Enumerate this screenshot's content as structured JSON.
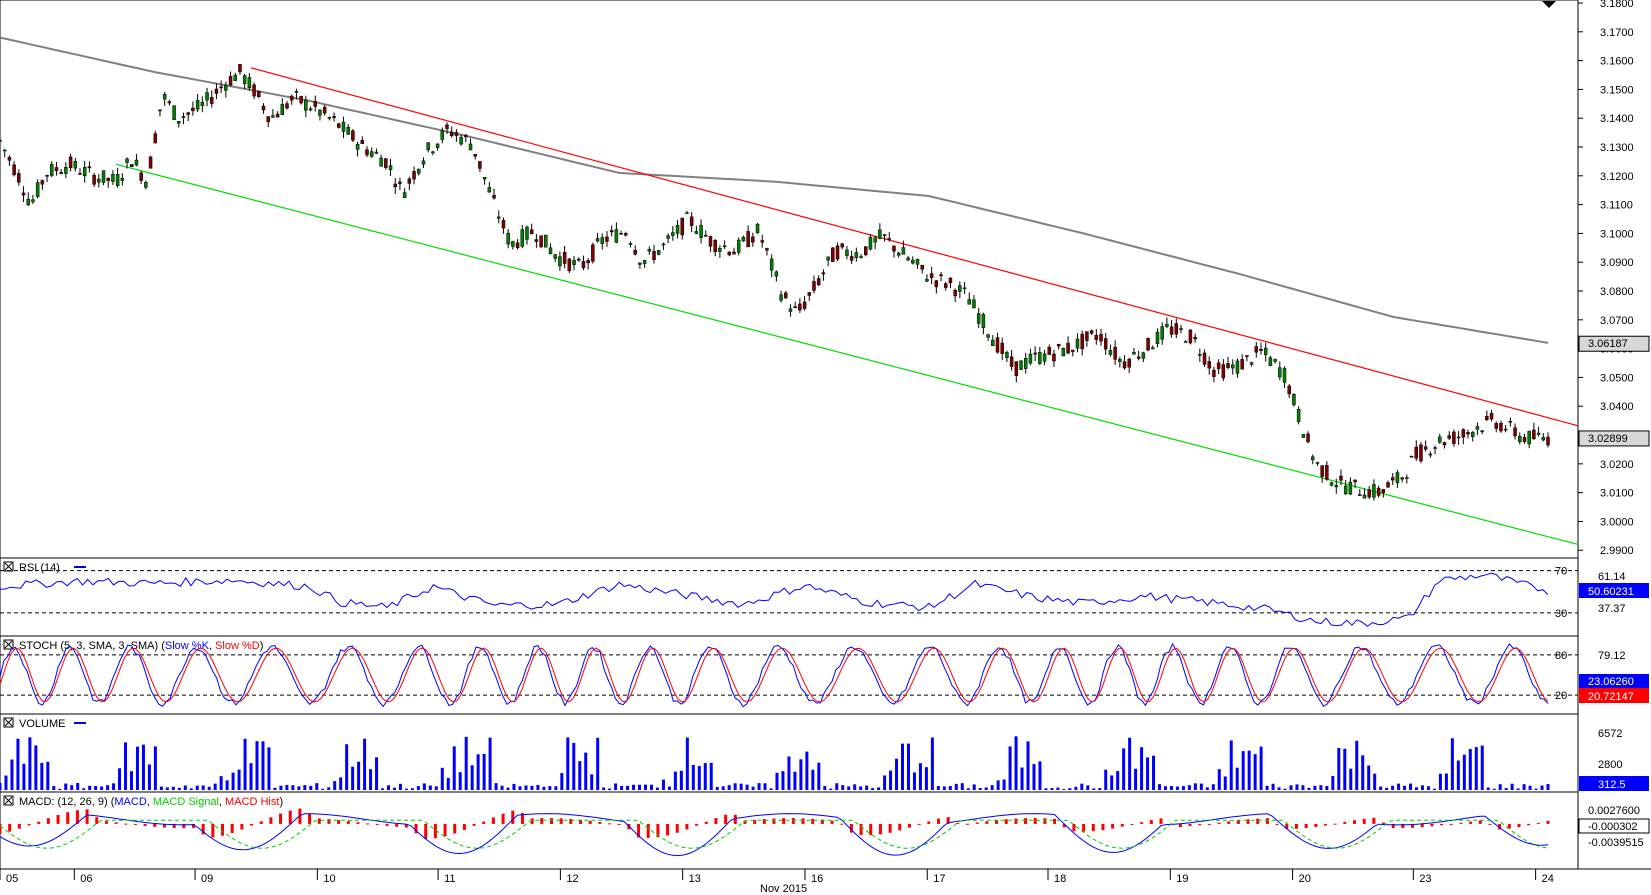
{
  "chart_data": {
    "type": "candlestick",
    "main": {
      "y_ticks": [
        "3.1800",
        "3.1700",
        "3.1600",
        "3.1500",
        "3.1400",
        "3.1300",
        "3.1200",
        "3.1100",
        "3.1000",
        "3.0900",
        "3.0800",
        "3.0700",
        "3.0600",
        "3.0500",
        "3.0400",
        "3.0300",
        "3.0200",
        "3.0100",
        "3.0000",
        "2.9900"
      ],
      "ylim": [
        2.988,
        3.18
      ],
      "sma_label": "3.06187",
      "sma_value": 3.06187,
      "last_price_label": "3.02899",
      "last_price": 3.02899,
      "sma_curve": [
        [
          0,
          3.168
        ],
        [
          0.05,
          3.162
        ],
        [
          0.1,
          3.156
        ],
        [
          0.2,
          3.146
        ],
        [
          0.3,
          3.134
        ],
        [
          0.4,
          3.121
        ],
        [
          0.5,
          3.118
        ],
        [
          0.6,
          3.113
        ],
        [
          0.7,
          3.1
        ],
        [
          0.8,
          3.086
        ],
        [
          0.9,
          3.071
        ],
        [
          1.0,
          3.062
        ]
      ],
      "upper_channel": {
        "start": [
          0.162,
          3.1575
        ],
        "end": [
          1.0,
          3.0332
        ]
      },
      "lower_channel": {
        "start": [
          0.075,
          3.124
        ],
        "end": [
          1.0,
          2.992
        ]
      },
      "price_path": [
        [
          0,
          3.132
        ],
        [
          0.012,
          3.12
        ],
        [
          0.02,
          3.11
        ],
        [
          0.03,
          3.121
        ],
        [
          0.045,
          3.124
        ],
        [
          0.06,
          3.12
        ],
        [
          0.075,
          3.118
        ],
        [
          0.085,
          3.126
        ],
        [
          0.095,
          3.118
        ],
        [
          0.105,
          3.148
        ],
        [
          0.115,
          3.14
        ],
        [
          0.13,
          3.144
        ],
        [
          0.145,
          3.152
        ],
        [
          0.155,
          3.156
        ],
        [
          0.165,
          3.149
        ],
        [
          0.175,
          3.14
        ],
        [
          0.19,
          3.147
        ],
        [
          0.205,
          3.143
        ],
        [
          0.22,
          3.137
        ],
        [
          0.235,
          3.13
        ],
        [
          0.25,
          3.125
        ],
        [
          0.26,
          3.114
        ],
        [
          0.275,
          3.128
        ],
        [
          0.29,
          3.136
        ],
        [
          0.305,
          3.131
        ],
        [
          0.318,
          3.112
        ],
        [
          0.33,
          3.096
        ],
        [
          0.345,
          3.101
        ],
        [
          0.36,
          3.092
        ],
        [
          0.375,
          3.088
        ],
        [
          0.39,
          3.098
        ],
        [
          0.405,
          3.101
        ],
        [
          0.415,
          3.09
        ],
        [
          0.43,
          3.096
        ],
        [
          0.445,
          3.105
        ],
        [
          0.46,
          3.097
        ],
        [
          0.475,
          3.094
        ],
        [
          0.49,
          3.101
        ],
        [
          0.505,
          3.079
        ],
        [
          0.515,
          3.072
        ],
        [
          0.525,
          3.08
        ],
        [
          0.54,
          3.094
        ],
        [
          0.555,
          3.093
        ],
        [
          0.57,
          3.099
        ],
        [
          0.585,
          3.092
        ],
        [
          0.6,
          3.085
        ],
        [
          0.615,
          3.082
        ],
        [
          0.625,
          3.078
        ],
        [
          0.64,
          3.065
        ],
        [
          0.655,
          3.053
        ],
        [
          0.67,
          3.057
        ],
        [
          0.69,
          3.06
        ],
        [
          0.71,
          3.065
        ],
        [
          0.725,
          3.055
        ],
        [
          0.74,
          3.06
        ],
        [
          0.755,
          3.067
        ],
        [
          0.77,
          3.064
        ],
        [
          0.785,
          3.052
        ],
        [
          0.8,
          3.054
        ],
        [
          0.815,
          3.059
        ],
        [
          0.83,
          3.051
        ],
        [
          0.84,
          3.035
        ],
        [
          0.85,
          3.02
        ],
        [
          0.865,
          3.013
        ],
        [
          0.88,
          3.011
        ],
        [
          0.89,
          3.01
        ],
        [
          0.905,
          3.015
        ],
        [
          0.915,
          3.023
        ],
        [
          0.93,
          3.028
        ],
        [
          0.945,
          3.03
        ],
        [
          0.955,
          3.033
        ],
        [
          0.965,
          3.035
        ],
        [
          0.975,
          3.032
        ],
        [
          0.985,
          3.029
        ],
        [
          1.0,
          3.029
        ]
      ]
    },
    "rsi": {
      "label": "RSI (14)",
      "levels": [
        "70",
        "30"
      ],
      "value_labels": [
        "61.14",
        "50.60231",
        "37.37"
      ],
      "level_values": [
        70,
        30
      ],
      "last_value": 50.60231,
      "path": [
        [
          0,
          55
        ],
        [
          0.05,
          60
        ],
        [
          0.1,
          58
        ],
        [
          0.15,
          61
        ],
        [
          0.2,
          55
        ],
        [
          0.22,
          40
        ],
        [
          0.25,
          35
        ],
        [
          0.28,
          55
        ],
        [
          0.3,
          45
        ],
        [
          0.32,
          37
        ],
        [
          0.36,
          38
        ],
        [
          0.4,
          57
        ],
        [
          0.45,
          45
        ],
        [
          0.48,
          38
        ],
        [
          0.52,
          56
        ],
        [
          0.56,
          40
        ],
        [
          0.6,
          35
        ],
        [
          0.63,
          57
        ],
        [
          0.67,
          44
        ],
        [
          0.7,
          39
        ],
        [
          0.74,
          46
        ],
        [
          0.78,
          40
        ],
        [
          0.82,
          33
        ],
        [
          0.85,
          22
        ],
        [
          0.88,
          20
        ],
        [
          0.91,
          25
        ],
        [
          0.93,
          61
        ],
        [
          0.96,
          66
        ],
        [
          0.98,
          58
        ],
        [
          1.0,
          51
        ]
      ]
    },
    "stoch": {
      "label": "STOCH (5, 3, SMA, 3, SMA)",
      "series": [
        {
          "name": "Slow %K",
          "color": "#0000ff"
        },
        {
          "name": "Slow %D",
          "color": "#ff0000"
        }
      ],
      "levels": [
        "80",
        "20"
      ],
      "value_labels": [
        "79.12",
        "23.06260",
        "20.72147"
      ],
      "level_values": [
        80,
        20
      ],
      "k_last": 23.0626,
      "d_last": 20.72147
    },
    "volume": {
      "label": "VOLUME",
      "value_labels": [
        "6572",
        "2800",
        "312.5"
      ],
      "ylim": [
        0,
        9500
      ],
      "last_value": 312.5
    },
    "macd": {
      "label": "MACD: (12, 26, 9)",
      "series": [
        {
          "name": "MACD",
          "color": "#0000ff"
        },
        {
          "name": "MACD Signal",
          "color": "#00cc00"
        },
        {
          "name": "MACD Hist",
          "color": "#ff0000"
        }
      ],
      "value_labels": [
        "0.0027600",
        "-0.000302",
        "-0.0039515"
      ],
      "ylim": [
        -0.0045,
        0.0032
      ],
      "last_value": -0.000302
    },
    "x_axis": {
      "labels": [
        "05",
        "06",
        "09",
        "10",
        "11",
        "12",
        "13",
        "16",
        "17",
        "18",
        "19",
        "20",
        "23",
        "24"
      ],
      "label_positions": [
        0,
        0.048,
        0.126,
        0.205,
        0.283,
        0.362,
        0.441,
        0.52,
        0.599,
        0.677,
        0.756,
        0.835,
        0.913,
        0.992
      ],
      "month_label": "Nov 2015"
    },
    "colors": {
      "upper_channel": "#ff0000",
      "lower_channel": "#00dd00",
      "sma": "#808080",
      "candle_up": "#008000",
      "candle_down": "#800000",
      "rsi_line": "#0000ff",
      "volume_bar": "#0000ff",
      "macd_hist": "#ff0000",
      "signal_label_bg": "#ff0000",
      "rsi_label_bg": "#0000ff"
    }
  }
}
